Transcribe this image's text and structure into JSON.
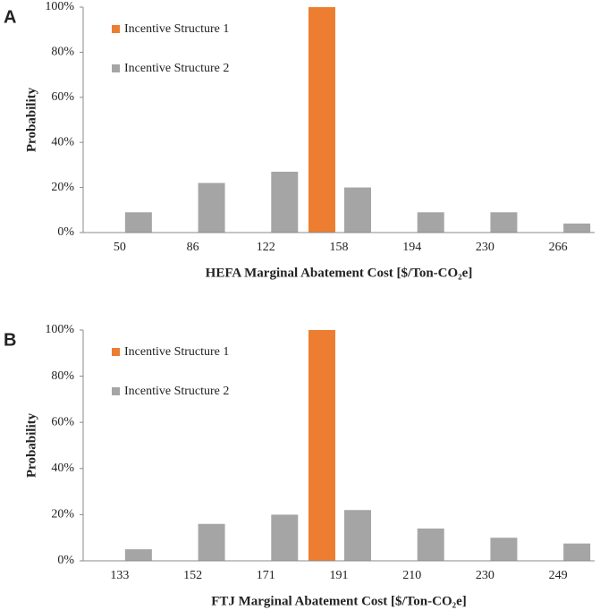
{
  "chart_data": [
    {
      "type": "bar",
      "panel": "A",
      "xlabel": "HEFA Marginal Abatement Cost [$/Ton-CO₂e]",
      "ylabel": "Probability",
      "categories": [
        "50",
        "86",
        "122",
        "158",
        "194",
        "230",
        "266"
      ],
      "series": [
        {
          "name": "Incentive Structure 1",
          "color": "#ed7d31",
          "values": [
            0,
            0,
            0,
            100,
            0,
            0,
            0
          ]
        },
        {
          "name": "Incentive Structure 2",
          "color": "#a5a5a5",
          "values": [
            9,
            22,
            27,
            20,
            9,
            9,
            4
          ]
        }
      ],
      "ylim": [
        0,
        100
      ],
      "yticks": [
        {
          "value": 0,
          "label": "0%"
        },
        {
          "value": 20,
          "label": "20%"
        },
        {
          "value": 40,
          "label": "40%"
        },
        {
          "value": 60,
          "label": "60%"
        },
        {
          "value": 80,
          "label": "80%"
        },
        {
          "value": 100,
          "label": "100%"
        }
      ],
      "legend": "upper left"
    },
    {
      "type": "bar",
      "panel": "B",
      "xlabel": "FTJ Marginal Abatement Cost [$/Ton-CO₂e]",
      "ylabel": "Probability",
      "categories": [
        "133",
        "152",
        "171",
        "191",
        "210",
        "230",
        "249"
      ],
      "series": [
        {
          "name": "Incentive Structure 1",
          "color": "#ed7d31",
          "values": [
            0,
            0,
            0,
            100,
            0,
            0,
            0
          ]
        },
        {
          "name": "Incentive Structure 2",
          "color": "#a5a5a5",
          "values": [
            5,
            16,
            20,
            22,
            14,
            10,
            7.5
          ]
        }
      ],
      "ylim": [
        0,
        100
      ],
      "yticks": [
        {
          "value": 0,
          "label": "0%"
        },
        {
          "value": 20,
          "label": "20%"
        },
        {
          "value": 40,
          "label": "40%"
        },
        {
          "value": 60,
          "label": "60%"
        },
        {
          "value": 80,
          "label": "80%"
        },
        {
          "value": 100,
          "label": "100%"
        }
      ],
      "legend": "upper left"
    }
  ]
}
